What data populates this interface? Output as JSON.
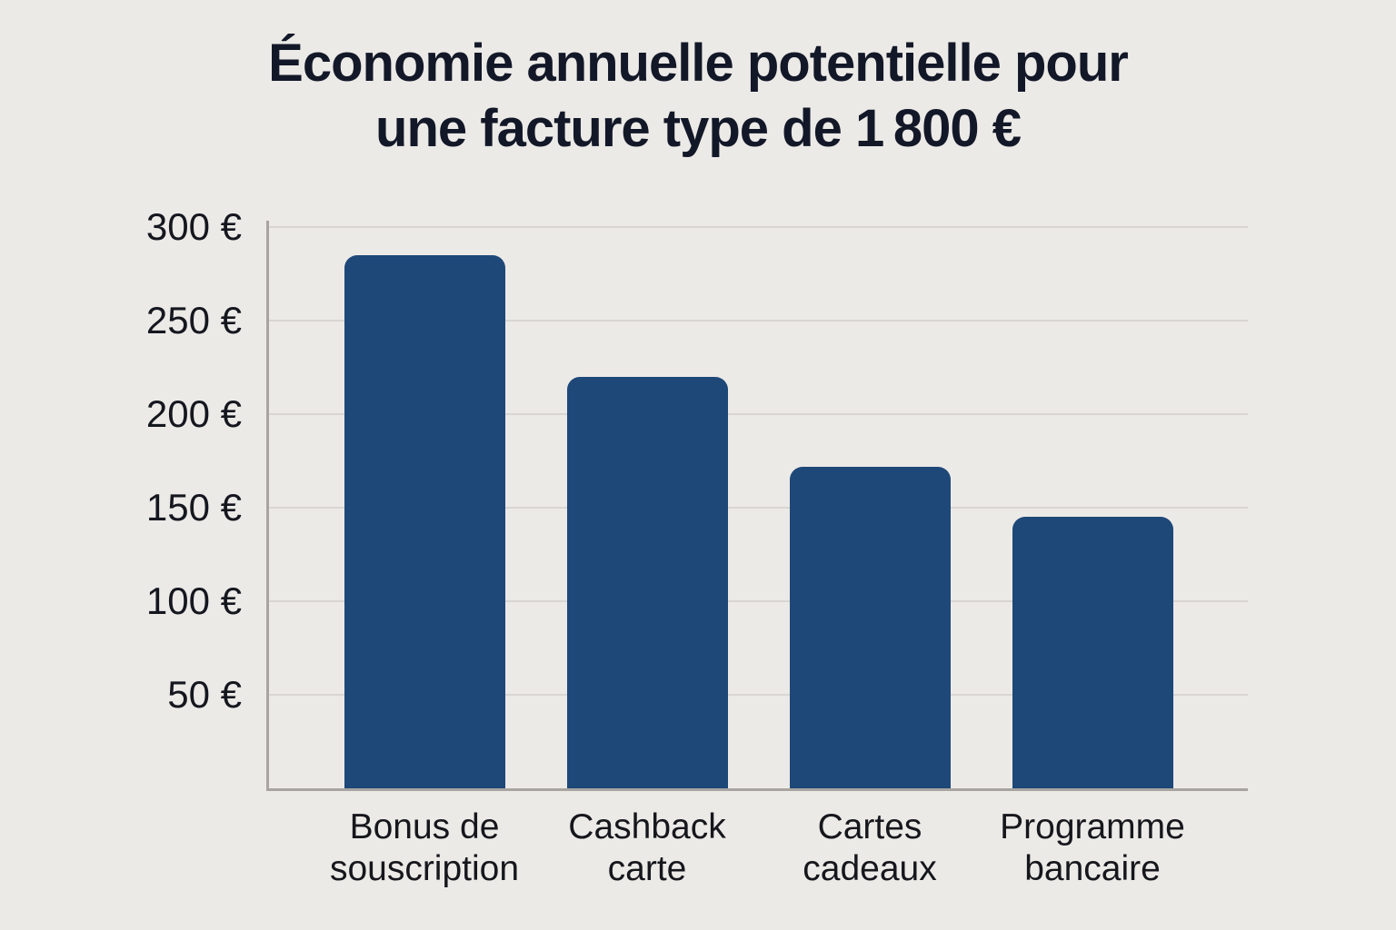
{
  "title": "Économie annuelle potentielle pour\nune facture type de 1 800 €",
  "chart_data": {
    "type": "bar",
    "title": "Économie annuelle potentielle pour une facture type de 1 800 €",
    "categories": [
      "Bonus de\nsouscription",
      "Cashback\ncarte",
      "Cartes\ncadeaux",
      "Programme\nbancaire"
    ],
    "values": [
      285,
      220,
      172,
      145
    ],
    "unit": "€",
    "yticks": [
      50,
      100,
      150,
      200,
      250,
      300
    ],
    "ytick_labels": [
      "50 €",
      "100 €",
      "150 €",
      "200 €",
      "250 €",
      "300 €"
    ],
    "ylim": [
      0,
      300
    ],
    "xlabel": "",
    "ylabel": "",
    "grid": true,
    "legend": false,
    "colors": {
      "bar": "#1e4878",
      "background": "#eceae7",
      "gridline": "#d8d5d2",
      "axis": "#a8a5a1",
      "text": "#131828"
    }
  }
}
